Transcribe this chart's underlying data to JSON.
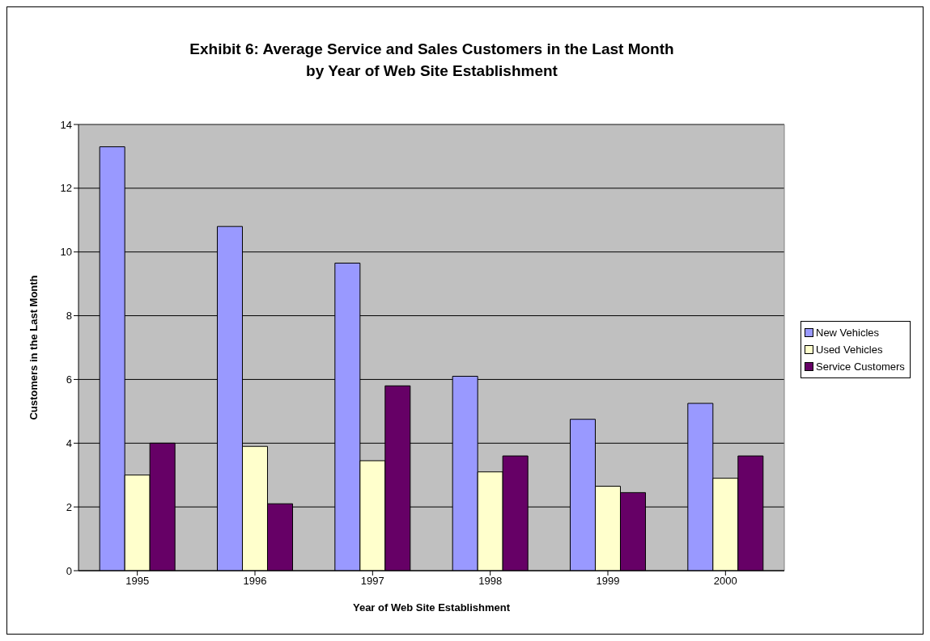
{
  "chart_data": {
    "type": "bar",
    "title": "Exhibit 6: Average Service and Sales Customers in the Last Month\nby Year of Web Site Establishment",
    "xlabel": "Year of Web Site Establishment",
    "ylabel": "Customers in the Last Month",
    "categories": [
      "1995",
      "1996",
      "1997",
      "1998",
      "1999",
      "2000"
    ],
    "series": [
      {
        "name": "New Vehicles",
        "color": "#9999ff",
        "values": [
          13.3,
          10.8,
          9.65,
          6.1,
          4.75,
          5.25
        ]
      },
      {
        "name": "Used Vehicles",
        "color": "#ffffcc",
        "values": [
          3.0,
          3.9,
          3.45,
          3.1,
          2.65,
          2.9
        ]
      },
      {
        "name": "Service Customers",
        "color": "#660066",
        "values": [
          4.0,
          2.1,
          5.8,
          3.6,
          2.45,
          3.6
        ]
      }
    ],
    "ylim": [
      0,
      14
    ],
    "yticks": [
      0,
      2,
      4,
      6,
      8,
      10,
      12,
      14
    ],
    "grid": "y",
    "legend": "right"
  }
}
